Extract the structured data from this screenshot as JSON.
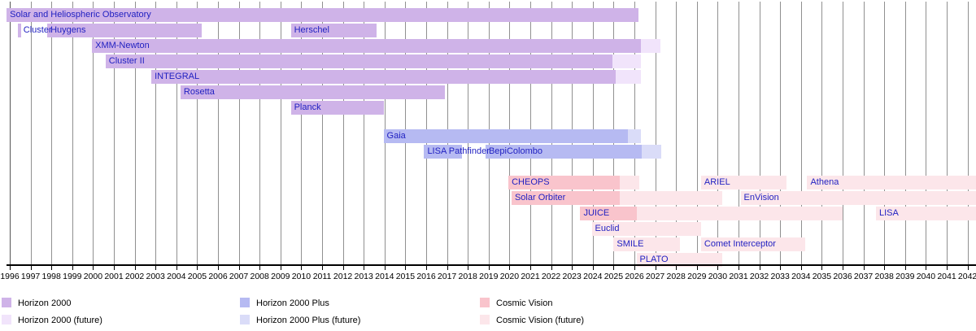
{
  "chart_data": {
    "type": "timeline",
    "title": "",
    "description": "ESA science mission timeline gantt chart, missions grouped by programme",
    "axis": {
      "start_year": 1996,
      "end_year": 2042,
      "years": [
        "1996",
        "1997",
        "1998",
        "1999",
        "2000",
        "2001",
        "2002",
        "2003",
        "2004",
        "2005",
        "2006",
        "2007",
        "2008",
        "2009",
        "2010",
        "2011",
        "2012",
        "2013",
        "2014",
        "2015",
        "2016",
        "2017",
        "2018",
        "2019",
        "2020",
        "2021",
        "2022",
        "2023",
        "2024",
        "2025",
        "2026",
        "2027",
        "2028",
        "2029",
        "2030",
        "2031",
        "2032",
        "2033",
        "2034",
        "2035",
        "2036",
        "2037",
        "2038",
        "2039",
        "2040",
        "2041",
        "2042"
      ],
      "grid": true,
      "gridline_color": "#909090",
      "first_gridline_color": "#555555"
    },
    "colors": {
      "h2000": {
        "active": "#cfb3e8",
        "future": "#f1e4fb"
      },
      "h2000plus": {
        "active": "#b6baf2",
        "future": "#dadcf8"
      },
      "cosmic": {
        "active": "#f9c4cc",
        "future": "#fce6ea"
      }
    },
    "label_color": "#1f1fc1",
    "missions": [
      {
        "name": "Solar and Heliospheric Observatory",
        "row": 0,
        "program": "h2000",
        "segments": [
          {
            "from": 1995.85,
            "to": 2026.2,
            "phase": "active"
          }
        ]
      },
      {
        "name": "Cluster",
        "row": 1,
        "program": "h2000",
        "label_at": 1996.5,
        "segments": [
          {
            "from": 1996.4,
            "to": 1996.55,
            "phase": "active"
          }
        ]
      },
      {
        "name": "Huygens",
        "row": 1,
        "program": "h2000",
        "segments": [
          {
            "from": 1997.8,
            "to": 2005.2,
            "phase": "active"
          }
        ]
      },
      {
        "name": "Herschel",
        "row": 1,
        "program": "h2000",
        "segments": [
          {
            "from": 2009.5,
            "to": 2013.6,
            "phase": "active"
          }
        ]
      },
      {
        "name": "XMM-Newton",
        "row": 2,
        "program": "h2000",
        "segments": [
          {
            "from": 1999.95,
            "to": 2026.3,
            "phase": "active"
          },
          {
            "from": 2026.3,
            "to": 2027.25,
            "phase": "future"
          }
        ]
      },
      {
        "name": "Cluster II",
        "row": 3,
        "program": "h2000",
        "segments": [
          {
            "from": 2000.6,
            "to": 2024.95,
            "phase": "active"
          },
          {
            "from": 2024.95,
            "to": 2026.3,
            "phase": "future"
          }
        ]
      },
      {
        "name": "INTEGRAL",
        "row": 4,
        "program": "h2000",
        "segments": [
          {
            "from": 2002.8,
            "to": 2025.1,
            "phase": "active"
          },
          {
            "from": 2025.1,
            "to": 2026.3,
            "phase": "future"
          }
        ]
      },
      {
        "name": "Rosetta",
        "row": 5,
        "program": "h2000",
        "segments": [
          {
            "from": 2004.2,
            "to": 2016.9,
            "phase": "active"
          }
        ]
      },
      {
        "name": "Planck",
        "row": 6,
        "program": "h2000",
        "segments": [
          {
            "from": 2009.5,
            "to": 2013.95,
            "phase": "active"
          }
        ]
      },
      {
        "name": "Gaia",
        "row": 7,
        "program": "h2000plus",
        "segments": [
          {
            "from": 2013.95,
            "to": 2025.7,
            "phase": "active"
          },
          {
            "from": 2025.7,
            "to": 2026.3,
            "phase": "future"
          }
        ]
      },
      {
        "name": "LISA Pathfinder",
        "row": 8,
        "program": "h2000plus",
        "segments": [
          {
            "from": 2015.9,
            "to": 2017.7,
            "phase": "active"
          }
        ]
      },
      {
        "name": "BepiColombo",
        "row": 8,
        "program": "h2000plus",
        "segments": [
          {
            "from": 2018.85,
            "to": 2026.35,
            "phase": "active"
          },
          {
            "from": 2026.35,
            "to": 2027.3,
            "phase": "future"
          }
        ]
      },
      {
        "name": "CHEOPS",
        "row": 9,
        "program": "cosmic",
        "segments": [
          {
            "from": 2019.95,
            "to": 2025.3,
            "phase": "active"
          },
          {
            "from": 2025.3,
            "to": 2026.25,
            "phase": "future"
          }
        ]
      },
      {
        "name": "ARIEL",
        "row": 9,
        "program": "cosmic",
        "segments": [
          {
            "from": 2029.2,
            "to": 2033.3,
            "phase": "future"
          }
        ]
      },
      {
        "name": "Athena",
        "row": 9,
        "program": "cosmic",
        "segments": [
          {
            "from": 2034.3,
            "to": 2042.6,
            "phase": "future"
          }
        ]
      },
      {
        "name": "Solar Orbiter",
        "row": 10,
        "program": "cosmic",
        "segments": [
          {
            "from": 2020.1,
            "to": 2025.3,
            "phase": "active"
          },
          {
            "from": 2025.3,
            "to": 2030.2,
            "phase": "future"
          }
        ]
      },
      {
        "name": "EnVision",
        "row": 10,
        "program": "cosmic",
        "segments": [
          {
            "from": 2031.1,
            "to": 2042.6,
            "phase": "future"
          }
        ]
      },
      {
        "name": "JUICE",
        "row": 11,
        "program": "cosmic",
        "segments": [
          {
            "from": 2023.4,
            "to": 2026.1,
            "phase": "active"
          },
          {
            "from": 2026.1,
            "to": 2036.0,
            "phase": "future"
          }
        ]
      },
      {
        "name": "LISA",
        "row": 11,
        "program": "cosmic",
        "segments": [
          {
            "from": 2037.6,
            "to": 2042.6,
            "phase": "future"
          }
        ]
      },
      {
        "name": "Euclid",
        "row": 12,
        "program": "cosmic",
        "segments": [
          {
            "from": 2023.95,
            "to": 2029.2,
            "phase": "future"
          }
        ]
      },
      {
        "name": "SMILE",
        "row": 13,
        "program": "cosmic",
        "segments": [
          {
            "from": 2025.0,
            "to": 2028.2,
            "phase": "future"
          }
        ]
      },
      {
        "name": "Comet Interceptor",
        "row": 13,
        "program": "cosmic",
        "segments": [
          {
            "from": 2029.2,
            "to": 2034.2,
            "phase": "future"
          }
        ]
      },
      {
        "name": "PLATO",
        "row": 14,
        "program": "cosmic",
        "segments": [
          {
            "from": 2026.1,
            "to": 2030.2,
            "phase": "future"
          }
        ]
      }
    ],
    "legend": {
      "position": "bottom",
      "items": [
        {
          "label": "Horizon 2000",
          "program": "h2000",
          "phase": "active",
          "col": 0,
          "row": 0
        },
        {
          "label": "Horizon 2000 (future)",
          "program": "h2000",
          "phase": "future",
          "col": 0,
          "row": 1
        },
        {
          "label": "Horizon 2000 Plus",
          "program": "h2000plus",
          "phase": "active",
          "col": 1,
          "row": 0
        },
        {
          "label": "Horizon 2000 Plus (future)",
          "program": "h2000plus",
          "phase": "future",
          "col": 1,
          "row": 1
        },
        {
          "label": "Cosmic Vision",
          "program": "cosmic",
          "phase": "active",
          "col": 2,
          "row": 0
        },
        {
          "label": "Cosmic Vision (future)",
          "program": "cosmic",
          "phase": "future",
          "col": 2,
          "row": 1
        }
      ]
    }
  }
}
